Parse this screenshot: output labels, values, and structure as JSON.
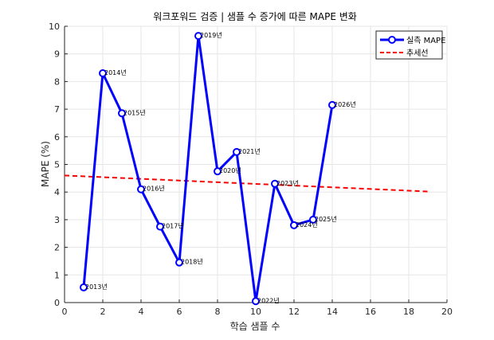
{
  "chart_data": {
    "type": "line",
    "title": "워크포워드 검증 | 샘플 수 증가에 따른 MAPE 변화",
    "xlabel": "학습 샘플 수",
    "ylabel": "MAPE (%)",
    "xlim": [
      0,
      20
    ],
    "ylim": [
      0,
      10
    ],
    "xticks": [
      0,
      2,
      4,
      6,
      8,
      10,
      12,
      14,
      16,
      18,
      20
    ],
    "yticks": [
      0,
      1,
      2,
      3,
      4,
      5,
      6,
      7,
      8,
      9,
      10
    ],
    "grid": true,
    "legend_position": "top-right",
    "series": [
      {
        "name": "실측 MAPE",
        "color": "#0000ff",
        "style": "solid-with-circle-markers",
        "x": [
          1,
          2,
          3,
          4,
          5,
          6,
          7,
          8,
          9,
          10,
          11,
          12,
          13,
          14
        ],
        "values": [
          0.55,
          8.3,
          6.85,
          4.1,
          2.75,
          1.45,
          9.65,
          4.75,
          5.45,
          0.05,
          4.3,
          2.8,
          3.0,
          7.15
        ],
        "point_labels": [
          "2013년",
          "2014년",
          "2015년",
          "2016년",
          "2017년",
          "2018년",
          "2019년",
          "2020년",
          "2021년",
          "2022년",
          "2023년",
          "2024년",
          "2025년",
          "2026년"
        ]
      },
      {
        "name": "추세선",
        "color": "#ff0000",
        "style": "dashed",
        "x": [
          0,
          19
        ],
        "values": [
          4.6,
          4.02
        ]
      }
    ]
  }
}
